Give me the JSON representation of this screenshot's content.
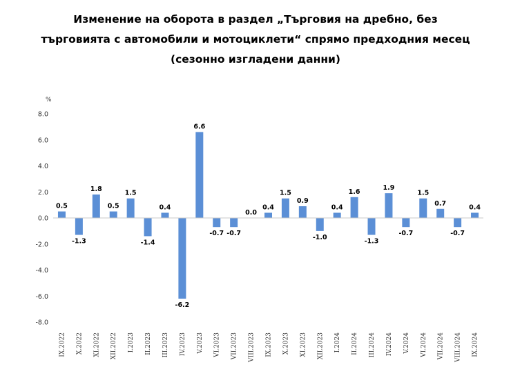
{
  "chart_data": {
    "type": "bar",
    "title_lines": [
      "Изменение на оборота в раздел „Търговия на дребно, без",
      "търговията с автомобили и мотоциклети“ спрямо предходния месец",
      "(сезонно изгладени данни)"
    ],
    "ylabel": "%",
    "xlabel": "",
    "ylim": [
      -8.0,
      8.0
    ],
    "yticks": [
      "8.0",
      "6.0",
      "4.0",
      "2.0",
      "0.0",
      "-2.0",
      "-4.0",
      "-6.0",
      "-8.0"
    ],
    "ytick_values": [
      8,
      6,
      4,
      2,
      0,
      -2,
      -4,
      -6,
      -8
    ],
    "categories": [
      "IX.2022",
      "X.2022",
      "XI.2022",
      "XII.2022",
      "I.2023",
      "II.2023",
      "III.2023",
      "IV.2023",
      "V.2023",
      "VI.2023",
      "VII.2023",
      "VIII.2023",
      "IX.2023",
      "X.2023",
      "XI.2023",
      "XII.2023",
      "I.2024",
      "II.2024",
      "III.2024",
      "IV.2024",
      "V.2024",
      "VI.2024",
      "VII.2024",
      "VIII.2024",
      "IX.2024"
    ],
    "values": [
      0.5,
      -1.3,
      1.8,
      0.5,
      1.5,
      -1.4,
      0.4,
      -6.2,
      6.6,
      -0.7,
      -0.7,
      0.0,
      0.4,
      1.5,
      0.9,
      -1.0,
      0.4,
      1.6,
      -1.3,
      1.9,
      -0.7,
      1.5,
      0.7,
      -0.7,
      0.4
    ],
    "labels": [
      "0.5",
      "-1.3",
      "1.8",
      "0.5",
      "1.5",
      "-1.4",
      "0.4",
      "-6.2",
      "6.6",
      "-0.7",
      "-0.7",
      "0.0",
      "0.4",
      "1.5",
      "0.9",
      "-1.0",
      "0.4",
      "1.6",
      "-1.3",
      "1.9",
      "-0.7",
      "1.5",
      "0.7",
      "-0.7",
      "0.4"
    ],
    "bar_color": "#5b8fd6",
    "grid": false
  }
}
